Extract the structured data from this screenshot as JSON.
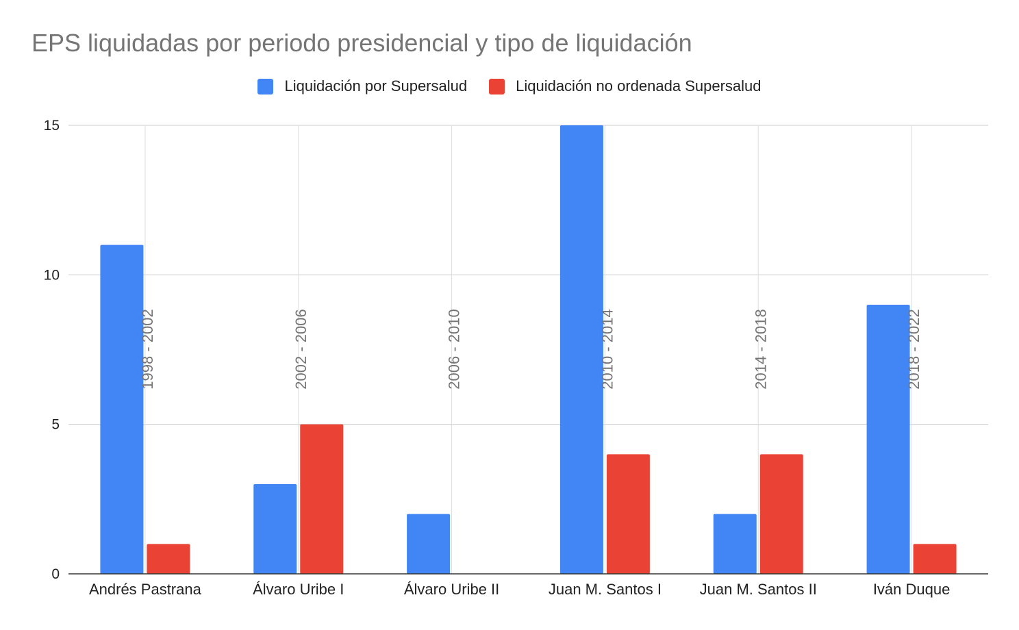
{
  "chart_data": {
    "type": "bar",
    "title": "EPS liquidadas por periodo presidencial y tipo de liquidación",
    "categories": [
      "Andrés Pastrana",
      "Álvaro Uribe I",
      "Álvaro Uribe II",
      "Juan M. Santos I",
      "Juan M. Santos II",
      "Iván Duque"
    ],
    "period_annotations": [
      "1998 - 2002",
      "2002 - 2006",
      "2006 - 2010",
      "2010 - 2014",
      "2014 - 2018",
      "2018 - 2022"
    ],
    "series": [
      {
        "name": "Liquidación por Supersalud",
        "color": "#4285f4",
        "values": [
          11,
          3,
          2,
          15,
          2,
          9
        ]
      },
      {
        "name": "Liquidación no ordenada Supersalud",
        "color": "#ea4335",
        "values": [
          1,
          5,
          0,
          4,
          4,
          1
        ]
      }
    ],
    "ylim": [
      0,
      15
    ],
    "yticks": [
      0,
      5,
      10,
      15
    ],
    "grid": true,
    "legend_position": "top"
  }
}
